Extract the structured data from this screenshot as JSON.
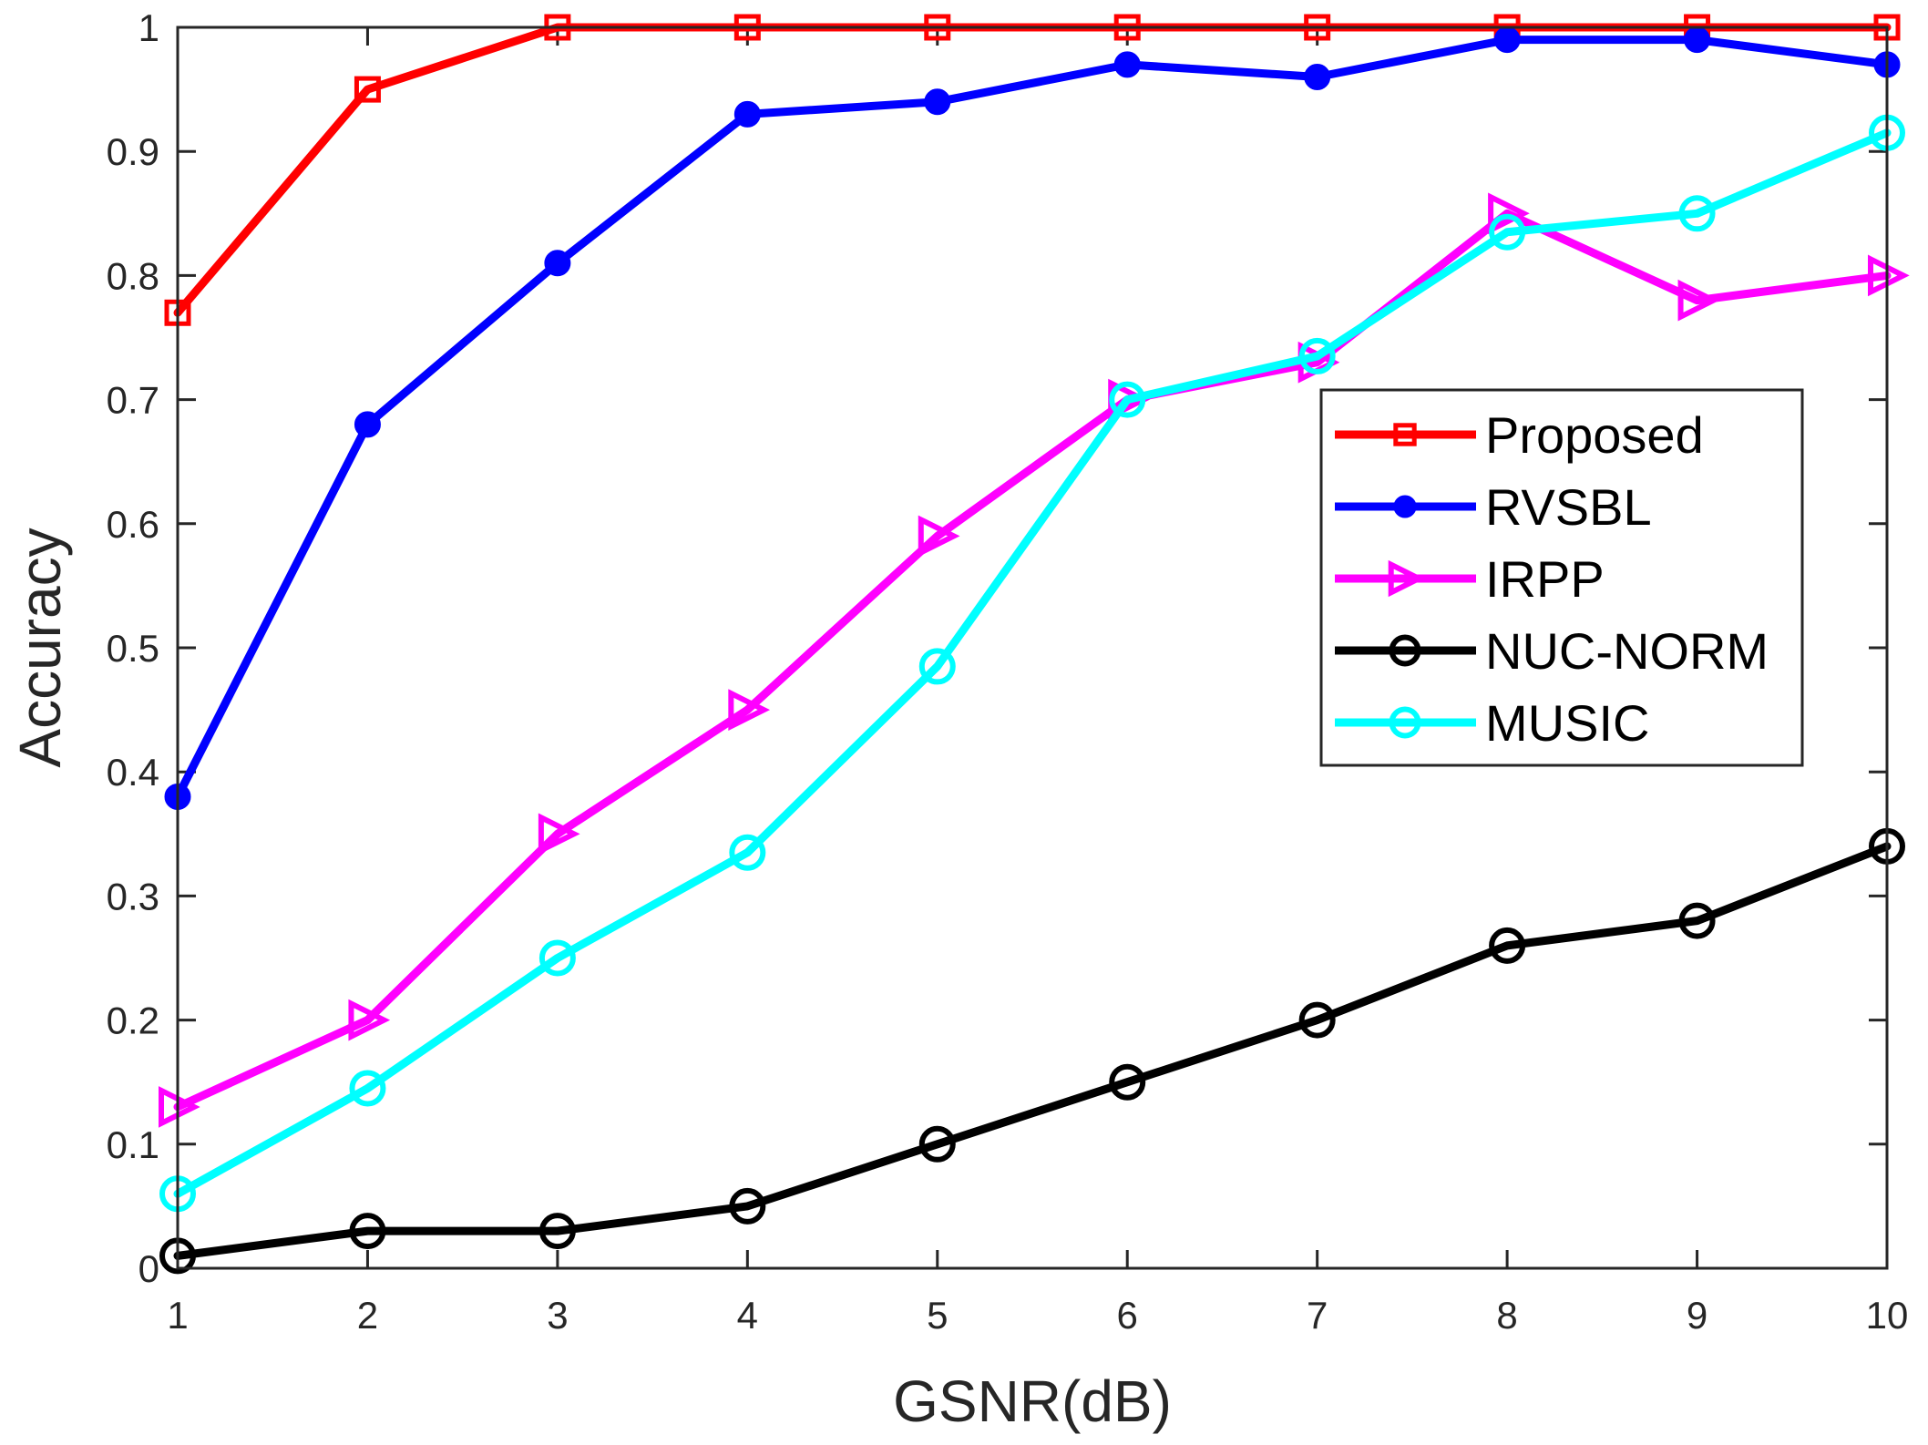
{
  "chart_data": {
    "type": "line",
    "title": "",
    "xlabel": "GSNR(dB)",
    "ylabel": "Accuracy",
    "xlim": [
      1,
      10
    ],
    "ylim": [
      0,
      1
    ],
    "xticks": [
      1,
      2,
      3,
      4,
      5,
      6,
      7,
      8,
      9,
      10
    ],
    "xtick_labels": [
      "1",
      "2",
      "3",
      "4",
      "5",
      "6",
      "7",
      "8",
      "9",
      "10"
    ],
    "yticks": [
      0,
      0.1,
      0.2,
      0.3,
      0.4,
      0.5,
      0.6,
      0.7,
      0.8,
      0.9,
      1
    ],
    "ytick_labels": [
      "0",
      "0.1",
      "0.2",
      "0.3",
      "0.4",
      "0.5",
      "0.6",
      "0.7",
      "0.8",
      "0.9",
      "1"
    ],
    "grid": false,
    "legend_position": "center-right",
    "x": [
      1,
      2,
      3,
      4,
      5,
      6,
      7,
      8,
      9,
      10
    ],
    "series": [
      {
        "name": "Proposed",
        "color": "#ff0000",
        "marker": "square",
        "values": [
          0.77,
          0.95,
          1.0,
          1.0,
          1.0,
          1.0,
          1.0,
          1.0,
          1.0,
          1.0
        ]
      },
      {
        "name": "RVSBL",
        "color": "#0000ff",
        "marker": "filled-circle",
        "values": [
          0.38,
          0.68,
          0.81,
          0.93,
          0.94,
          0.97,
          0.96,
          0.99,
          0.99,
          0.97
        ]
      },
      {
        "name": "IRPP",
        "color": "#ff00ff",
        "marker": "right-triangle",
        "values": [
          0.13,
          0.2,
          0.35,
          0.45,
          0.59,
          0.7,
          0.73,
          0.85,
          0.78,
          0.8
        ]
      },
      {
        "name": "NUC-NORM",
        "color": "#000000",
        "marker": "open-circle",
        "values": [
          0.01,
          0.03,
          0.03,
          0.05,
          0.1,
          0.15,
          0.2,
          0.26,
          0.28,
          0.34
        ]
      },
      {
        "name": "MUSIC",
        "color": "#00ffff",
        "marker": "open-circle",
        "values": [
          0.06,
          0.145,
          0.25,
          0.335,
          0.485,
          0.7,
          0.735,
          0.835,
          0.85,
          0.915
        ]
      }
    ]
  }
}
